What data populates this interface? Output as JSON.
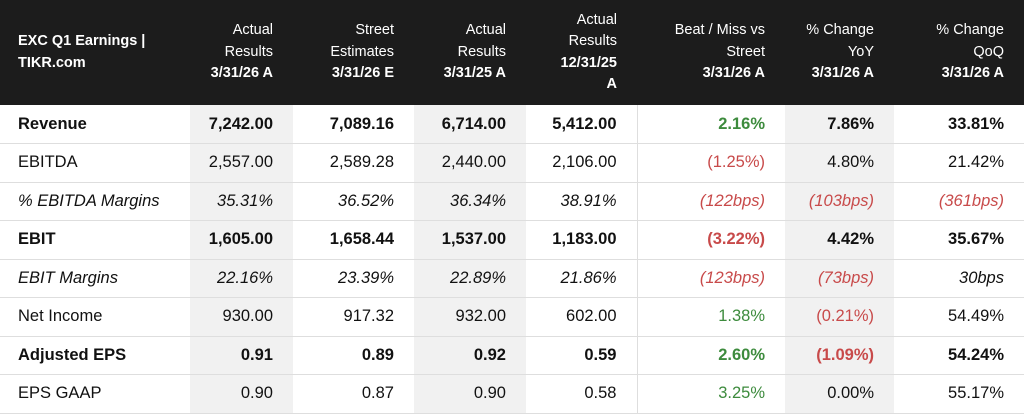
{
  "header": {
    "title_line1": "EXC Q1 Earnings |",
    "title_line2": "TIKR.com",
    "columns": [
      {
        "l1": "",
        "l2": "Actual",
        "l3": "Results",
        "l4": "3/31/26 A"
      },
      {
        "l1": "",
        "l2": "Street",
        "l3": "Estimates",
        "l4": "3/31/26 E"
      },
      {
        "l1": "",
        "l2": "Actual",
        "l3": "Results",
        "l4": "3/31/25 A"
      },
      {
        "l1": "Actual",
        "l2": "Results",
        "l3": "12/31/25",
        "l4": "A"
      },
      {
        "l1": "",
        "l2": "Beat / Miss vs",
        "l3": "Street",
        "l4": "3/31/26 A"
      },
      {
        "l1": "",
        "l2": "% Change",
        "l3": "YoY",
        "l4": "3/31/26 A"
      },
      {
        "l1": "",
        "l2": "% Change",
        "l3": "QoQ",
        "l4": "3/31/26 A"
      }
    ]
  },
  "rows": [
    {
      "label": "Revenue",
      "v": [
        "7,242.00",
        "7,089.16",
        "6,714.00",
        "5,412.00",
        "2.16%",
        "7.86%",
        "33.81%"
      ]
    },
    {
      "label": "EBITDA",
      "v": [
        "2,557.00",
        "2,589.28",
        "2,440.00",
        "2,106.00",
        "(1.25%)",
        "4.80%",
        "21.42%"
      ]
    },
    {
      "label": "% EBITDA Margins",
      "v": [
        "35.31%",
        "36.52%",
        "36.34%",
        "38.91%",
        "(122bps)",
        "(103bps)",
        "(361bps)"
      ]
    },
    {
      "label": "EBIT",
      "v": [
        "1,605.00",
        "1,658.44",
        "1,537.00",
        "1,183.00",
        "(3.22%)",
        "4.42%",
        "35.67%"
      ]
    },
    {
      "label": "EBIT Margins",
      "v": [
        "22.16%",
        "23.39%",
        "22.89%",
        "21.86%",
        "(123bps)",
        "(73bps)",
        "30bps"
      ]
    },
    {
      "label": "Net Income",
      "v": [
        "930.00",
        "917.32",
        "932.00",
        "602.00",
        "1.38%",
        "(0.21%)",
        "54.49%"
      ]
    },
    {
      "label": "Adjusted EPS",
      "v": [
        "0.91",
        "0.89",
        "0.92",
        "0.59",
        "2.60%",
        "(1.09%)",
        "54.24%"
      ]
    },
    {
      "label": "EPS GAAP",
      "v": [
        "0.90",
        "0.87",
        "0.90",
        "0.58",
        "3.25%",
        "0.00%",
        "55.17%"
      ]
    }
  ],
  "colors": {
    "header_bg": "#1c1c1c",
    "positive": "#3d8b3d",
    "negative": "#c84a4a",
    "shaded": "#f1f1f1"
  }
}
